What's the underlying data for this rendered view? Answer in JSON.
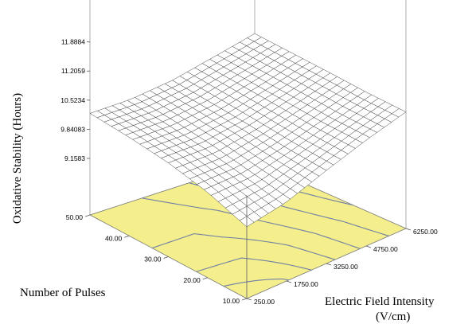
{
  "chart_data": {
    "type": "surface3d",
    "title": "",
    "zlabel": "Oxidative Stability (Hours)",
    "xlabel": "Number of Pulses",
    "ylabel_line1": "Electric Field Intensity",
    "ylabel_line2": "(V/cm)",
    "z_ticks": [
      "9.1583",
      "9.84083",
      "10.5234",
      "11.2059",
      "11.8884"
    ],
    "pulse_ticks": [
      "10.00",
      "20.00",
      "30.00",
      "40.00",
      "50.00"
    ],
    "field_ticks": [
      "250.00",
      "1750.00",
      "3250.00",
      "4750.00",
      "6250.00"
    ],
    "pulses_range": [
      10,
      50
    ],
    "field_range": [
      250,
      6250
    ],
    "zlim": [
      9.1583,
      11.8884
    ],
    "surface_z": [
      [
        9.7,
        9.87,
        10.2,
        10.5,
        10.75
      ],
      [
        10.02,
        10.05,
        10.27,
        10.54,
        10.8
      ],
      [
        10.22,
        10.22,
        10.38,
        10.62,
        10.88
      ],
      [
        10.33,
        10.34,
        10.47,
        10.7,
        10.95
      ],
      [
        10.4,
        10.42,
        10.55,
        10.78,
        11.02
      ]
    ],
    "contour_lines": 6,
    "colors": {
      "floor": "#f4ef8c",
      "contour": "#6f7fa7",
      "mesh": "#333333",
      "surface": "#ffffff"
    }
  }
}
